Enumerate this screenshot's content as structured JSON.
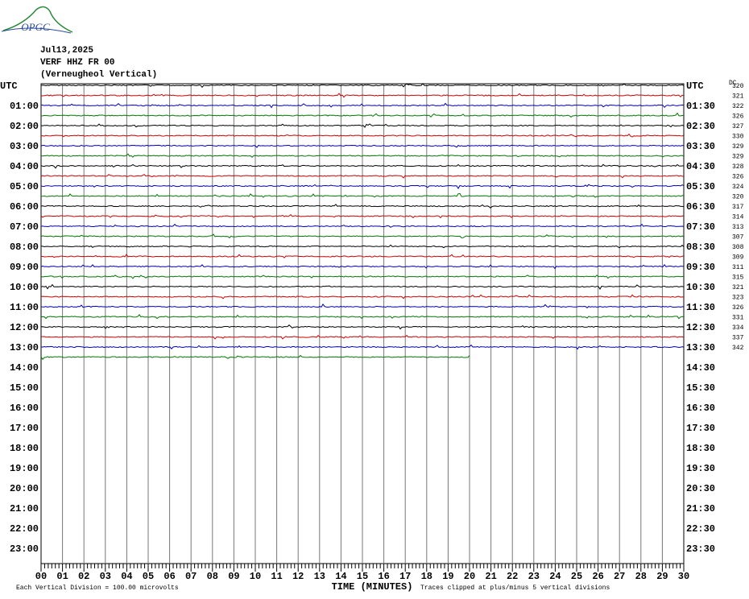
{
  "header": {
    "logo": "OPGC",
    "date": "Jul13,2025",
    "station": "VERF HHZ FR 00",
    "description": "(Verneugheol Vertical)"
  },
  "left_labels": [
    "UTC",
    "01:00",
    "02:00",
    "03:00",
    "04:00",
    "05:00",
    "06:00",
    "07:00",
    "08:00",
    "09:00",
    "10:00",
    "11:00",
    "12:00",
    "13:00",
    "14:00",
    "15:00",
    "16:00",
    "17:00",
    "18:00",
    "19:00",
    "20:00",
    "21:00",
    "22:00",
    "23:00"
  ],
  "right_labels": [
    "UTC",
    "01:30",
    "02:30",
    "03:30",
    "04:30",
    "05:30",
    "06:30",
    "07:30",
    "08:30",
    "09:30",
    "10:30",
    "11:30",
    "12:30",
    "13:30",
    "14:30",
    "15:30",
    "16:30",
    "17:30",
    "18:30",
    "19:30",
    "20:30",
    "21:30",
    "22:30",
    "23:30"
  ],
  "dc_header": "DC",
  "dc_values": [
    "320",
    "321",
    "322",
    "326",
    "327",
    "330",
    "329",
    "329",
    "328",
    "326",
    "324",
    "320",
    "317",
    "314",
    "313",
    "307",
    "308",
    "309",
    "311",
    "315",
    "321",
    "323",
    "326",
    "331",
    "334",
    "337",
    "342"
  ],
  "minute_labels": [
    "00",
    "01",
    "02",
    "03",
    "04",
    "05",
    "06",
    "07",
    "08",
    "09",
    "10",
    "11",
    "12",
    "13",
    "14",
    "15",
    "16",
    "17",
    "18",
    "19",
    "20",
    "21",
    "22",
    "23",
    "24",
    "25",
    "26",
    "27",
    "28",
    "29",
    "30"
  ],
  "footer": {
    "scale": "Each Vertical Division =  100.00 microvolts",
    "axis_title": "TIME (MINUTES)",
    "clip_note": "Traces clipped at plus/minus 5 vertical divisions"
  }
}
